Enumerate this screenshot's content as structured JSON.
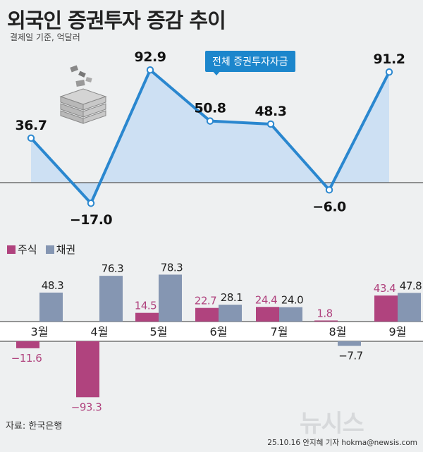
{
  "title": "외국인 증권투자 증감 추이",
  "subtitle": "결제일 기준, 억달러",
  "callout": "전체 증권투자자금",
  "legend": {
    "stock": "주식",
    "bond": "채권"
  },
  "source": "자료: 한국은행",
  "credit": "25.10.16 안지혜 기자 hokma@newsis.com",
  "watermark": "뉴시스",
  "colors": {
    "line": "#2a87cf",
    "area": "#cde0f3",
    "stock": "#b0437e",
    "bond": "#8596b2"
  },
  "chart_data": [
    {
      "type": "line",
      "x": [
        "3월",
        "4월",
        "5월",
        "6월",
        "7월",
        "8월",
        "9월"
      ],
      "series": [
        {
          "name": "전체 증권투자자금",
          "values": [
            36.7,
            -17.0,
            92.9,
            50.8,
            48.3,
            -6.0,
            91.2
          ]
        }
      ]
    },
    {
      "type": "bar",
      "categories": [
        "3월",
        "4월",
        "5월",
        "6월",
        "7월",
        "8월",
        "9월"
      ],
      "series": [
        {
          "name": "주식",
          "values": [
            -11.6,
            -93.3,
            14.5,
            22.7,
            24.4,
            1.8,
            43.4
          ]
        },
        {
          "name": "채권",
          "values": [
            48.3,
            76.3,
            78.3,
            28.1,
            24.0,
            -7.7,
            47.8
          ]
        }
      ]
    }
  ]
}
